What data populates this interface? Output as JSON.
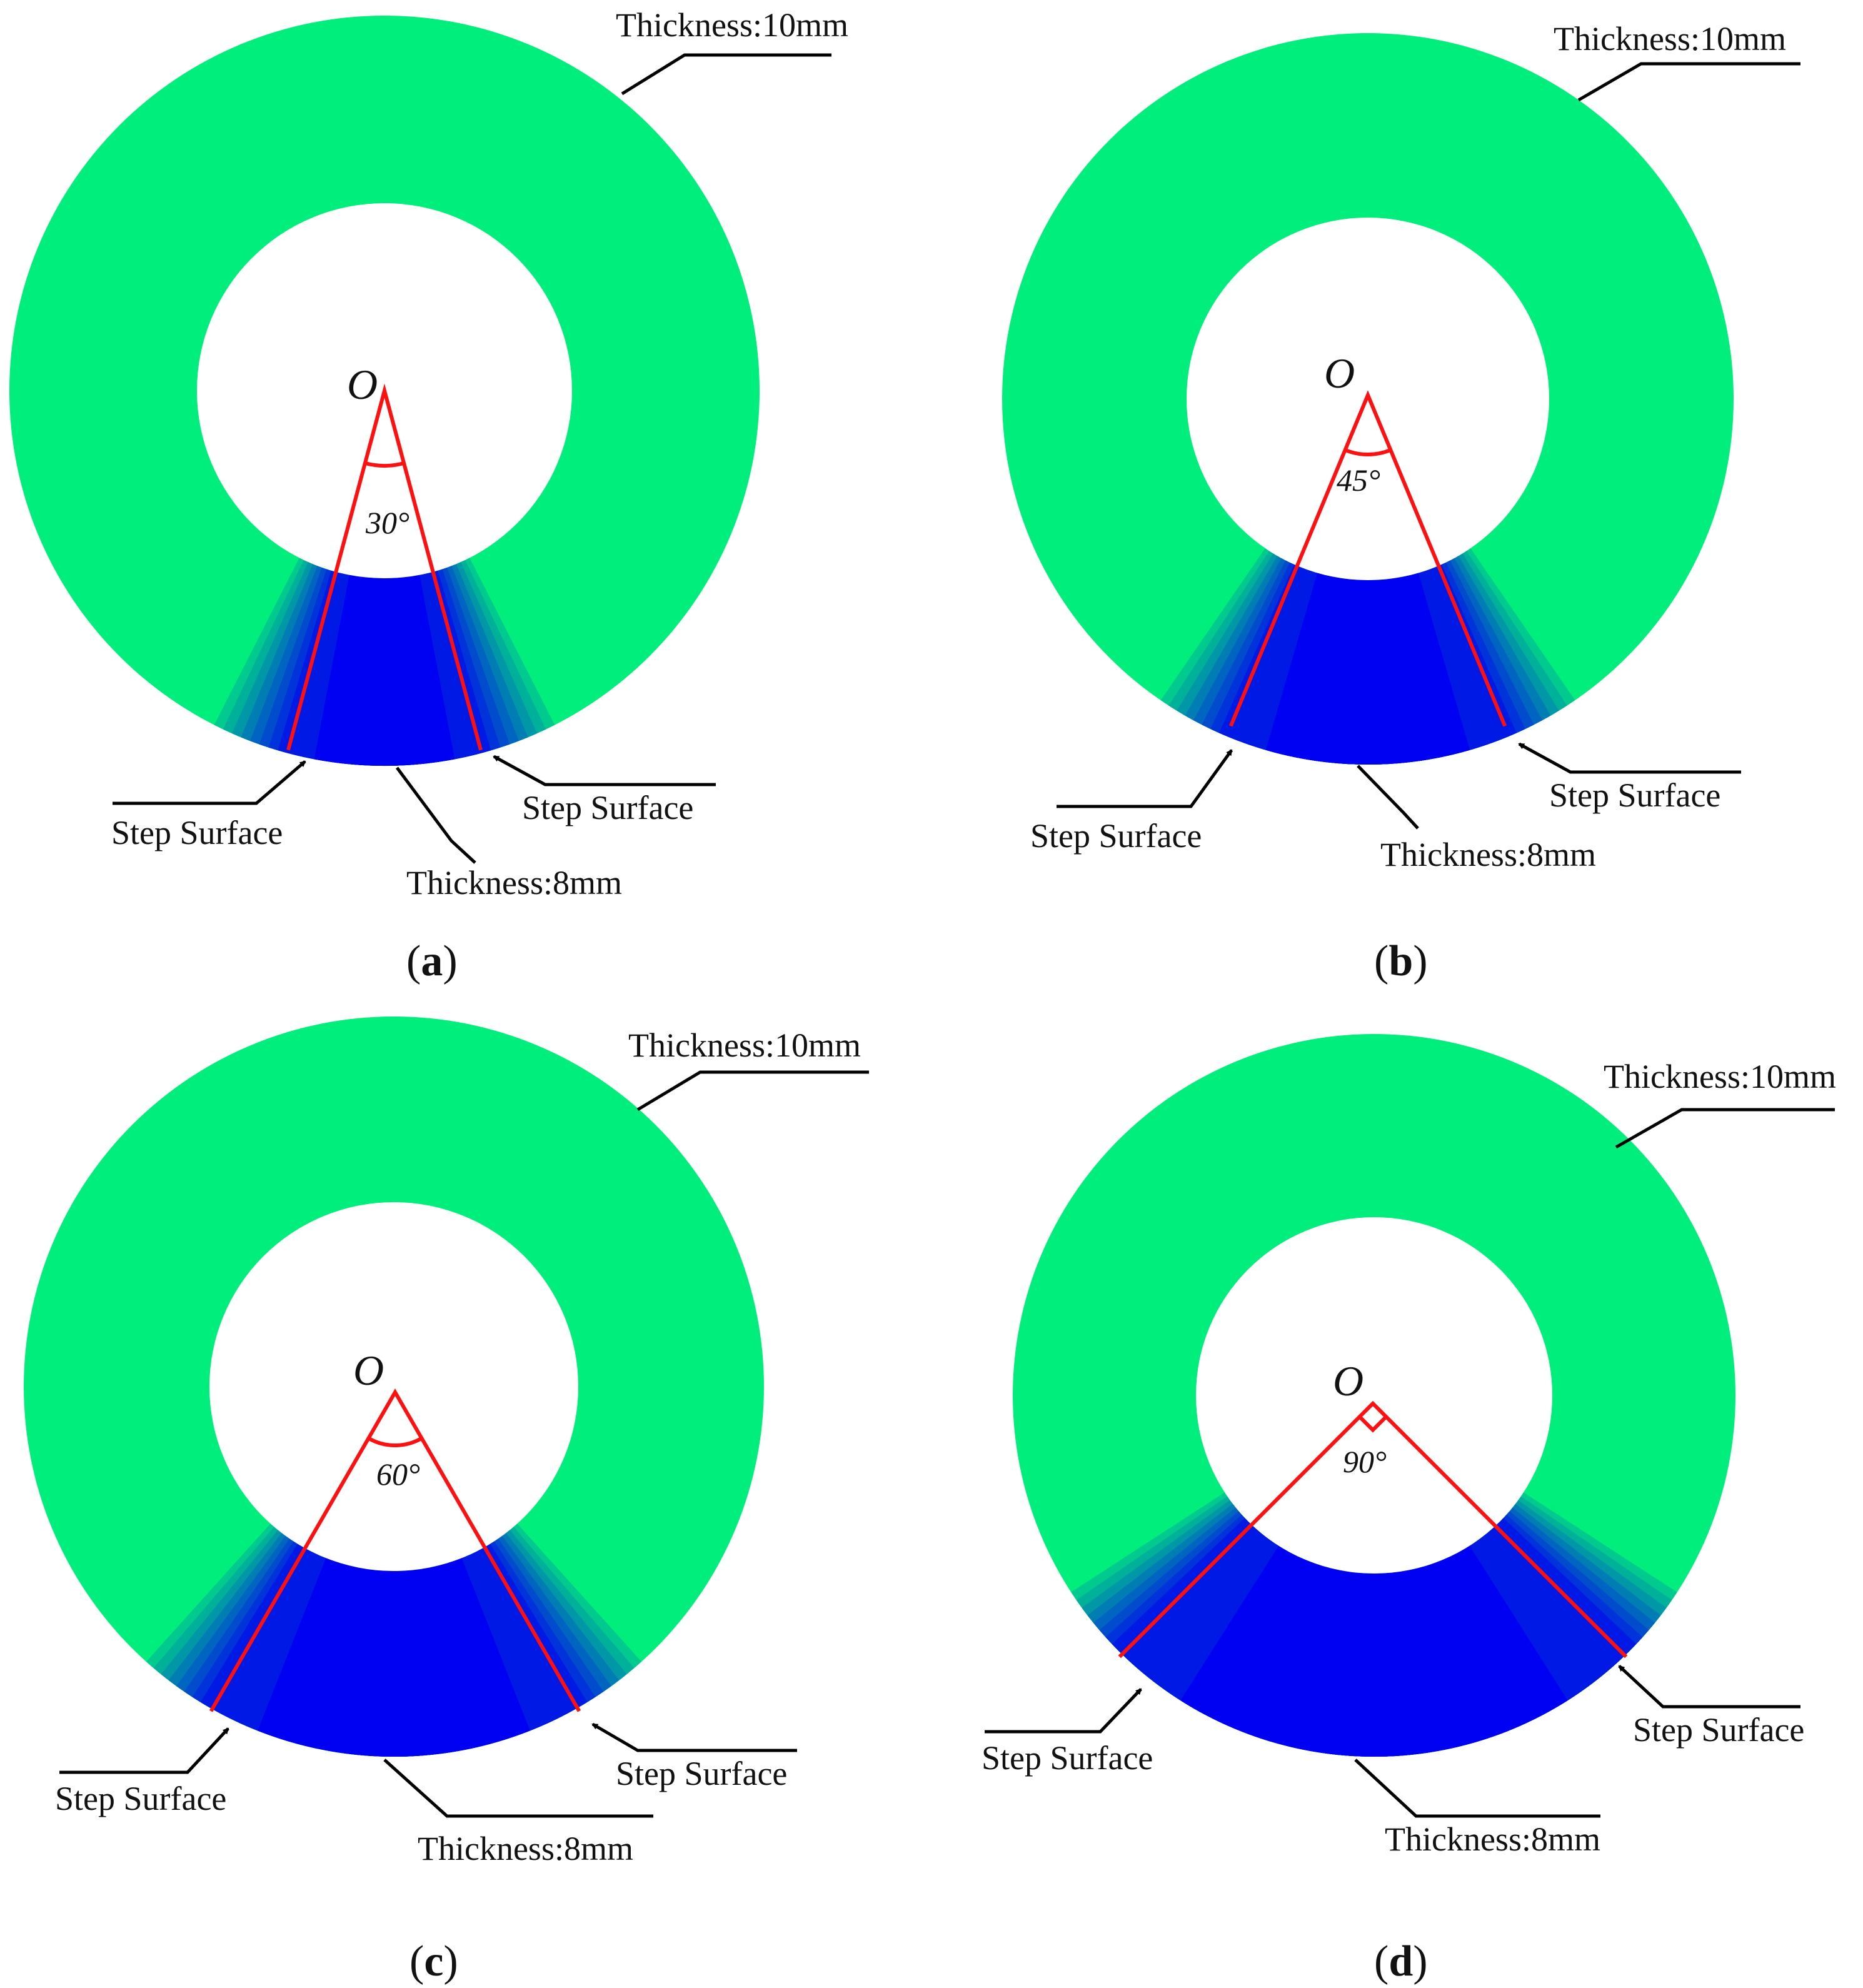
{
  "colors": {
    "ring_outer": "#00ee7c",
    "thin_region": "#0000f2",
    "boundary_line": "#ff1010",
    "leader_line": "#000000"
  },
  "labels": {
    "thick_section": "Thickness:10mm",
    "thin_section": "Thickness:8mm",
    "step": "Step Surface",
    "origin": "O"
  },
  "panels": [
    {
      "tag_prefix": "(",
      "tag_letter": "a",
      "tag_suffix": ")",
      "angle_deg": 30,
      "angle_label": "30°"
    },
    {
      "tag_prefix": "(",
      "tag_letter": "b",
      "tag_suffix": ")",
      "angle_deg": 45,
      "angle_label": "45°"
    },
    {
      "tag_prefix": "(",
      "tag_letter": "c",
      "tag_suffix": ")",
      "angle_deg": 60,
      "angle_label": "60°"
    },
    {
      "tag_prefix": "(",
      "tag_letter": "d",
      "tag_suffix": ")",
      "angle_deg": 90,
      "angle_label": "90°"
    }
  ]
}
